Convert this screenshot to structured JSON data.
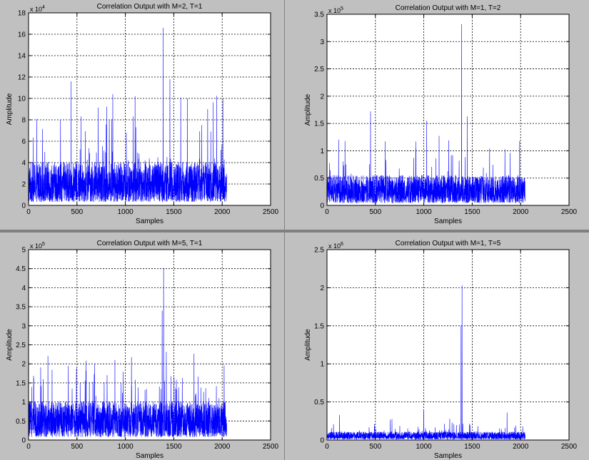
{
  "colors": {
    "panel_bg": "#c0c0c0",
    "plot_bg": "#ffffff",
    "line": "#0000ff",
    "grid": "#000000",
    "separator": "#808080"
  },
  "chart_data": [
    {
      "type": "line",
      "title": "Correlation Output with M=2, T=1",
      "xlabel": "Samples",
      "ylabel": "Amplitude",
      "xlim": [
        0,
        2500
      ],
      "ylim": [
        0,
        18
      ],
      "xticks": [
        "0",
        "500",
        "1000",
        "1500",
        "2000",
        "2500"
      ],
      "yticks": [
        "0",
        "2",
        "4",
        "6",
        "8",
        "10",
        "12",
        "14",
        "16",
        "18"
      ],
      "y_multiplier_base": "x 10",
      "y_multiplier_exp": "4",
      "grid": true,
      "series": [
        {
          "n_samples": 2048,
          "noise_floor": 2.2,
          "peaks": [
            {
              "x": 330,
              "y": 8.0
            },
            {
              "x": 440,
              "y": 11.6
            },
            {
              "x": 870,
              "y": 10.4
            },
            {
              "x": 1010,
              "y": 6.8
            },
            {
              "x": 1100,
              "y": 10.2
            },
            {
              "x": 1390,
              "y": 16.6
            },
            {
              "x": 1460,
              "y": 11.8
            },
            {
              "x": 1640,
              "y": 10.0
            },
            {
              "x": 1850,
              "y": 9.0
            }
          ]
        }
      ]
    },
    {
      "type": "line",
      "title": "Correlation Output with M=1, T=2",
      "xlabel": "Samples",
      "ylabel": "Amplitude",
      "xlim": [
        0,
        2500
      ],
      "ylim": [
        0,
        3.5
      ],
      "xticks": [
        "0",
        "500",
        "1000",
        "1500",
        "2000",
        "2500"
      ],
      "yticks": [
        "0",
        "0.5",
        "1",
        "1.5",
        "2",
        "2.5",
        "3",
        "3.5"
      ],
      "y_multiplier_base": "x 10",
      "y_multiplier_exp": "5",
      "grid": true,
      "series": [
        {
          "n_samples": 2048,
          "noise_floor": 0.3,
          "peaks": [
            {
              "x": 450,
              "y": 1.72
            },
            {
              "x": 1030,
              "y": 1.55
            },
            {
              "x": 1390,
              "y": 3.32
            },
            {
              "x": 1450,
              "y": 1.63
            },
            {
              "x": 1990,
              "y": 1.18
            }
          ]
        }
      ]
    },
    {
      "type": "line",
      "title": "Correlation Output with M=5, T=1",
      "xlabel": "Samples",
      "ylabel": "Amplitude",
      "xlim": [
        0,
        2500
      ],
      "ylim": [
        0,
        5
      ],
      "xticks": [
        "0",
        "500",
        "1000",
        "1500",
        "2000",
        "2500"
      ],
      "yticks": [
        "0",
        "0.5",
        "1",
        "1.5",
        "2",
        "2.5",
        "3",
        "3.5",
        "4",
        "4.5",
        "5"
      ],
      "y_multiplier_base": "x 10",
      "y_multiplier_exp": "5",
      "grid": true,
      "series": [
        {
          "n_samples": 2048,
          "noise_floor": 0.55,
          "peaks": [
            {
              "x": 130,
              "y": 1.42
            },
            {
              "x": 450,
              "y": 1.35
            },
            {
              "x": 1380,
              "y": 3.4
            },
            {
              "x": 1395,
              "y": 4.52
            },
            {
              "x": 1550,
              "y": 1.38
            },
            {
              "x": 1830,
              "y": 1.36
            }
          ]
        }
      ]
    },
    {
      "type": "line",
      "title": "Correlation Output with M=1, T=5",
      "xlabel": "Samples",
      "ylabel": "Amplitude",
      "xlim": [
        0,
        2500
      ],
      "ylim": [
        0,
        2.5
      ],
      "xticks": [
        "0",
        "500",
        "1000",
        "1500",
        "2000",
        "2500"
      ],
      "yticks": [
        "0",
        "0.5",
        "1",
        "1.5",
        "2",
        "2.5"
      ],
      "y_multiplier_base": "x 10",
      "y_multiplier_exp": "6",
      "grid": true,
      "series": [
        {
          "n_samples": 2048,
          "noise_floor": 0.06,
          "peaks": [
            {
              "x": 130,
              "y": 0.33
            },
            {
              "x": 1000,
              "y": 0.4
            },
            {
              "x": 1385,
              "y": 1.5
            },
            {
              "x": 1395,
              "y": 2.03
            },
            {
              "x": 1860,
              "y": 0.36
            }
          ]
        }
      ]
    }
  ]
}
